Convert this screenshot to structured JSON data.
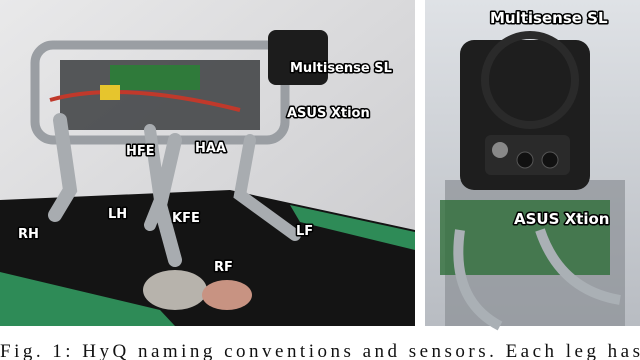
{
  "figure": {
    "left_labels": [
      "Multisense SL",
      "ASUS Xtion",
      "HFE",
      "HAA",
      "KFE",
      "LH",
      "RH",
      "LF",
      "RF"
    ],
    "right_labels": [
      "Multisense SL",
      "ASUS Xtion"
    ],
    "caption": "Fig. 1: HyQ naming conventions and sensors. Each leg has"
  }
}
